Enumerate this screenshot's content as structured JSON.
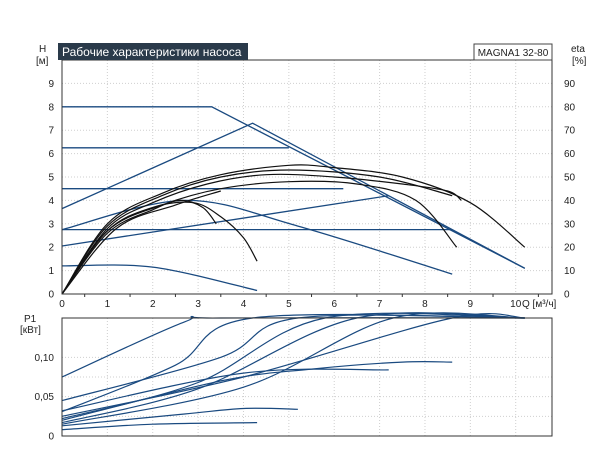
{
  "title": "Рабочие характеристики насоса",
  "model": "MAGNA1 32-80",
  "colors": {
    "blue": "#1a4a80",
    "black": "#111111",
    "title_bg": "#2a3a4a",
    "title_fg": "#ffffff",
    "grid": "#cfcfcf"
  },
  "chart_data": [
    {
      "type": "line",
      "name": "head-efficiency",
      "xlabel": "Q [м³/ч]",
      "ylabel": "H\n[м]",
      "y2label": "eta\n[%]",
      "xlim": [
        0,
        10.8
      ],
      "ylim": [
        0,
        10
      ],
      "y2lim": [
        0,
        100
      ],
      "x_ticks": [
        0,
        1,
        2,
        3,
        4,
        5,
        6,
        7,
        8,
        9,
        10
      ],
      "y_ticks": [
        0,
        1,
        2,
        3,
        4,
        5,
        6,
        7,
        8,
        9
      ],
      "y2_ticks": [
        0,
        10,
        20,
        30,
        40,
        50,
        60,
        70,
        80,
        90
      ],
      "grid": true,
      "series": [
        {
          "axis": "left",
          "color": "blue",
          "points": [
            [
              0,
              8.0
            ],
            [
              3.3,
              8.0
            ],
            [
              10.2,
              1.1
            ]
          ]
        },
        {
          "axis": "left",
          "color": "blue",
          "points": [
            [
              0,
              3.65
            ],
            [
              4.2,
              7.3
            ],
            [
              10.2,
              1.1
            ]
          ]
        },
        {
          "axis": "left",
          "color": "blue",
          "points": [
            [
              0,
              6.25
            ],
            [
              5.0,
              6.25
            ]
          ]
        },
        {
          "axis": "left",
          "color": "blue",
          "points": [
            [
              0,
              4.5
            ],
            [
              6.2,
              4.5
            ]
          ]
        },
        {
          "axis": "left",
          "color": "blue",
          "points": [
            [
              0,
              2.75
            ],
            [
              8.6,
              2.75
            ]
          ]
        },
        {
          "axis": "left",
          "color": "blue",
          "points": [
            [
              0,
              2.05
            ],
            [
              7.2,
              4.2
            ]
          ]
        },
        {
          "axis": "left",
          "color": "blue",
          "points": [
            [
              0,
              2.75
            ],
            [
              2.7,
              4.0
            ],
            [
              5.2,
              2.9
            ],
            [
              8.6,
              0.85
            ]
          ]
        },
        {
          "axis": "left",
          "color": "blue",
          "points": [
            [
              0,
              1.2
            ],
            [
              2.0,
              1.15
            ],
            [
              4.3,
              0.15
            ]
          ]
        },
        {
          "axis": "right",
          "color": "black",
          "points": [
            [
              0,
              0
            ],
            [
              1.0,
              30
            ],
            [
              2.2,
              43
            ],
            [
              3.5,
              51
            ],
            [
              5.0,
              55
            ],
            [
              6.0,
              54
            ],
            [
              7.5,
              50
            ],
            [
              9.0,
              39
            ],
            [
              10.2,
              20
            ]
          ]
        },
        {
          "axis": "right",
          "color": "black",
          "points": [
            [
              0,
              0
            ],
            [
              1.0,
              29
            ],
            [
              2.2,
              42
            ],
            [
              3.5,
              50
            ],
            [
              5.0,
              53
            ],
            [
              7.0,
              50
            ],
            [
              8.6,
              42
            ]
          ]
        },
        {
          "axis": "right",
          "color": "black",
          "points": [
            [
              0,
              0
            ],
            [
              1.0,
              28
            ],
            [
              2.0,
              39
            ],
            [
              3.2,
              47
            ],
            [
              4.5,
              51
            ],
            [
              6.0,
              50
            ],
            [
              7.5,
              47
            ],
            [
              8.5,
              44
            ],
            [
              8.8,
              40
            ]
          ]
        },
        {
          "axis": "right",
          "color": "black",
          "points": [
            [
              0,
              0
            ],
            [
              1.0,
              27
            ],
            [
              2.2,
              38
            ],
            [
              3.5,
              45
            ],
            [
              5.0,
              48
            ],
            [
              6.5,
              47
            ],
            [
              7.8,
              40
            ],
            [
              8.7,
              20
            ]
          ]
        },
        {
          "axis": "right",
          "color": "black",
          "points": [
            [
              0,
              0
            ],
            [
              1.2,
              28
            ],
            [
              2.5,
              38
            ],
            [
              3.5,
              44
            ]
          ]
        },
        {
          "axis": "right",
          "color": "black",
          "points": [
            [
              0,
              0
            ],
            [
              1.0,
              27
            ],
            [
              2.0,
              37
            ],
            [
              2.9,
              39
            ],
            [
              3.5,
              33
            ],
            [
              4.0,
              24
            ],
            [
              4.3,
              14
            ]
          ]
        },
        {
          "axis": "right",
          "color": "black",
          "points": [
            [
              0,
              0
            ],
            [
              1.0,
              26
            ],
            [
              2.0,
              36
            ],
            [
              2.6,
              40
            ],
            [
              3.1,
              37
            ],
            [
              3.4,
              30
            ]
          ]
        }
      ]
    },
    {
      "type": "line",
      "name": "power",
      "xlabel": "",
      "ylabel": "P1\n[кВт]",
      "xlim": [
        0,
        10.8
      ],
      "ylim": [
        0,
        0.15
      ],
      "y_ticks": [
        0,
        0.05,
        0.1
      ],
      "y_tick_labels": [
        "0",
        "0,05",
        "0,10"
      ],
      "grid": true,
      "series": [
        {
          "color": "blue",
          "points": [
            [
              0,
              0.075
            ],
            [
              2.7,
              0.145
            ],
            [
              3.5,
              0.15
            ],
            [
              10.2,
              0.15
            ]
          ]
        },
        {
          "color": "blue",
          "points": [
            [
              0,
              0.031
            ],
            [
              2.5,
              0.09
            ],
            [
              4.2,
              0.15
            ],
            [
              10.2,
              0.15
            ]
          ]
        },
        {
          "color": "blue",
          "points": [
            [
              0,
              0.045
            ],
            [
              3.5,
              0.1
            ],
            [
              5.2,
              0.15
            ],
            [
              10.2,
              0.15
            ]
          ]
        },
        {
          "color": "blue",
          "points": [
            [
              0,
              0.022
            ],
            [
              3.0,
              0.068
            ],
            [
              5.8,
              0.15
            ],
            [
              10.2,
              0.15
            ]
          ]
        },
        {
          "color": "blue",
          "points": [
            [
              0,
              0.017
            ],
            [
              3.0,
              0.06
            ],
            [
              6.5,
              0.15
            ],
            [
              10.2,
              0.15
            ]
          ]
        },
        {
          "color": "blue",
          "points": [
            [
              0,
              0.015
            ],
            [
              4.0,
              0.062
            ],
            [
              7.3,
              0.15
            ],
            [
              10.2,
              0.15
            ]
          ]
        },
        {
          "color": "blue",
          "points": [
            [
              0,
              0.025
            ],
            [
              4.0,
              0.075
            ],
            [
              8.6,
              0.15
            ],
            [
              10.2,
              0.15
            ]
          ]
        },
        {
          "color": "blue",
          "points": [
            [
              0,
              0.02
            ],
            [
              3.5,
              0.07
            ],
            [
              5.5,
              0.085
            ],
            [
              7.5,
              0.094
            ],
            [
              8.6,
              0.094
            ]
          ]
        },
        {
          "color": "blue",
          "points": [
            [
              0,
              0.032
            ],
            [
              4.0,
              0.08
            ],
            [
              7.2,
              0.084
            ]
          ]
        },
        {
          "color": "blue",
          "points": [
            [
              0,
              0.013
            ],
            [
              2.7,
              0.028
            ],
            [
              4.0,
              0.035
            ],
            [
              5.2,
              0.034
            ]
          ]
        },
        {
          "color": "blue",
          "points": [
            [
              0,
              0.008
            ],
            [
              2.0,
              0.015
            ],
            [
              4.3,
              0.017
            ]
          ]
        }
      ]
    }
  ]
}
